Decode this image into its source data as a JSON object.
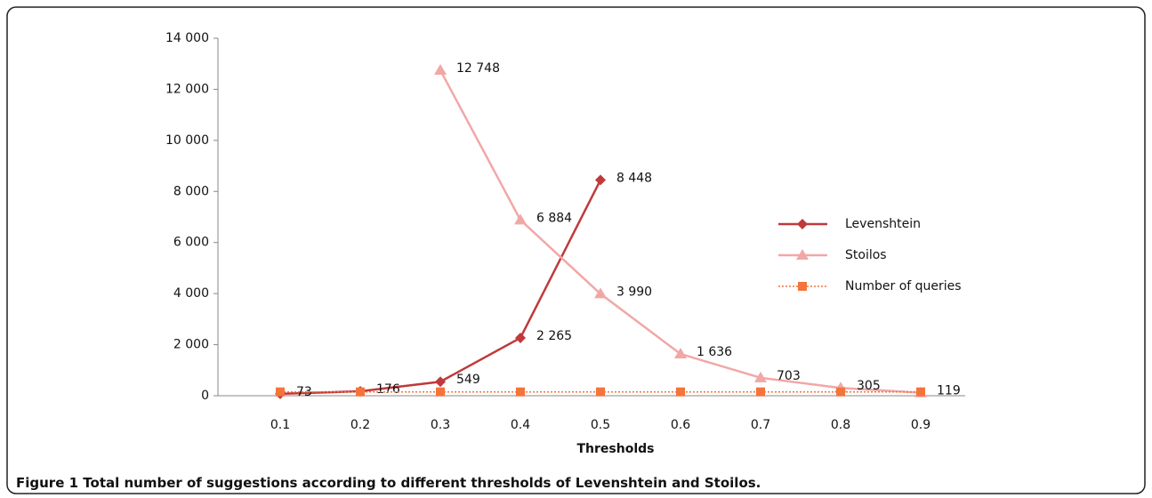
{
  "chart_data": {
    "type": "line",
    "caption_label": "Figure 1",
    "caption": "Total number of suggestions according to different thresholds of Levenshtein and Stoilos.",
    "xlabel": "Thresholds",
    "categories": [
      "0.1",
      "0.2",
      "0.3",
      "0.4",
      "0.5",
      "0.6",
      "0.7",
      "0.8",
      "0.9"
    ],
    "ylim": [
      0,
      14000
    ],
    "yticks": [
      0,
      {
        "value": 2000,
        "label": "2 000"
      },
      {
        "value": 4000,
        "label": "4 000"
      },
      {
        "value": 6000,
        "label": "6 000"
      },
      {
        "value": 8000,
        "label": "8 000"
      },
      {
        "value": 10000,
        "label": "10 000"
      },
      {
        "value": 12000,
        "label": "12 000"
      },
      {
        "value": 14000,
        "label": "14 000"
      }
    ],
    "grid": false,
    "legend": "right",
    "series": [
      {
        "name": "Levenshtein",
        "color": "#c0393b",
        "marker": "diamond",
        "dash": "solid",
        "values": [
          73,
          176,
          549,
          2265,
          8448,
          null,
          null,
          null,
          null
        ],
        "value_labels": [
          "73",
          "176",
          "549",
          "2 265",
          "8 448",
          null,
          null,
          null,
          null
        ]
      },
      {
        "name": " Stoilos",
        "color": "#f2a7a7",
        "marker": "triangle",
        "dash": "solid",
        "values": [
          null,
          null,
          12748,
          6884,
          3990,
          1636,
          703,
          305,
          119
        ],
        "value_labels": [
          null,
          null,
          "12 748",
          "6 884",
          "3 990",
          "1 636",
          "703",
          "305",
          "119"
        ]
      },
      {
        "name": "Number of queries",
        "color": "#f4743b",
        "marker": "square",
        "dash": "dotted",
        "values": [
          150,
          150,
          150,
          150,
          150,
          150,
          150,
          150,
          150
        ]
      }
    ]
  }
}
